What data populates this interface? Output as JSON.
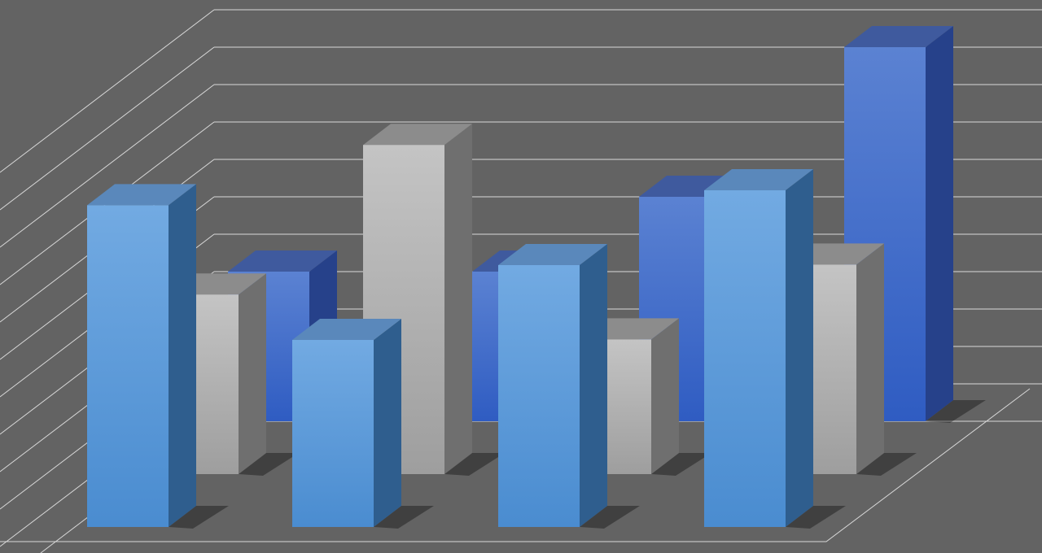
{
  "chart_data": {
    "type": "bar",
    "variant": "3d-clustered-depth",
    "title": "",
    "xlabel": "",
    "ylabel": "",
    "ylim": [
      0,
      11
    ],
    "grid": true,
    "legend": "none",
    "categories": [
      "",
      "",
      "",
      ""
    ],
    "series": [
      {
        "row": "back",
        "color": "#3f68c8",
        "values": [
          4.0,
          4.0,
          6.0,
          10.0
        ]
      },
      {
        "row": "middle",
        "color": "#b4b4b4",
        "values": [
          4.8,
          8.8,
          3.6,
          5.6
        ]
      },
      {
        "row": "front",
        "color": "#5a9ad8",
        "values": [
          8.6,
          5.0,
          7.0,
          9.0
        ]
      }
    ],
    "background_color": "#636363",
    "gridline_color": "#d8d8d8"
  }
}
